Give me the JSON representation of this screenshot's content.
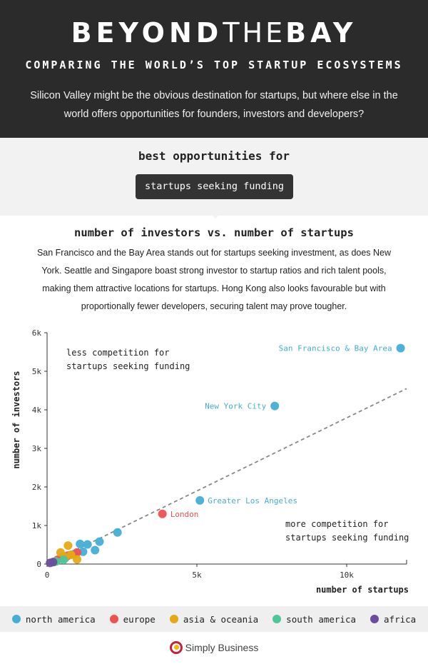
{
  "header": {
    "title_bold_1": "BEYOND",
    "title_thin": "THE",
    "title_bold_2": "BAY",
    "subtitle": "COMPARING THE WORLD’S TOP STARTUP ECOSYSTEMS",
    "intro": "Silicon Valley might be the obvious destination for startups, but where else in the world offers opportunities for founders, investors and developers?"
  },
  "section": {
    "best_label": "best opportunities for",
    "selected_option": "startups seeking funding",
    "chart_heading": "number of investors vs. number of startups",
    "description": "San Francisco and the Bay Area stands out for startups seeking investment, as does New York. Seattle and Singapore boast strong investor to startup ratios and rich talent pools, making them attractive locations for startups. Hong Kong also looks favourable but with proportionally fewer developers, securing talent may prove tougher."
  },
  "colors": {
    "north america": "#45aed6",
    "europe": "#ef5050",
    "asia & oceania": "#e6a914",
    "south america": "#4bc79a",
    "africa": "#6a4e9c"
  },
  "chart_data": {
    "type": "scatter",
    "xlabel": "number of startups",
    "ylabel": "number of investors",
    "xlim": [
      0,
      12000
    ],
    "ylim": [
      0,
      6000
    ],
    "xticks": [
      0,
      5000,
      10000
    ],
    "xtick_labels": [
      "0",
      "5k",
      "10k"
    ],
    "yticks": [
      0,
      1000,
      2000,
      3000,
      4000,
      5000,
      6000
    ],
    "ytick_labels": [
      "0",
      "1k",
      "2k",
      "3k",
      "4k",
      "5k",
      "6k"
    ],
    "reference_line": {
      "style": "dashed",
      "from": [
        0,
        0
      ],
      "to": [
        12000,
        4550
      ]
    },
    "annotations": [
      {
        "text_lines": [
          "less competition for",
          "startups seeking funding"
        ],
        "placement": "top-left"
      },
      {
        "text_lines": [
          "more competition for",
          "startups seeking funding"
        ],
        "placement": "bottom-right"
      }
    ],
    "series": [
      {
        "name": "north america",
        "points": [
          {
            "x": 11800,
            "y": 5600,
            "label": "San Francisco & Bay Area"
          },
          {
            "x": 7600,
            "y": 4100,
            "label": "New York City"
          },
          {
            "x": 5100,
            "y": 1650,
            "label": "Greater Los Angeles"
          },
          {
            "x": 2350,
            "y": 820
          },
          {
            "x": 1750,
            "y": 580
          },
          {
            "x": 1350,
            "y": 510
          },
          {
            "x": 1100,
            "y": 520
          },
          {
            "x": 1600,
            "y": 360
          },
          {
            "x": 1200,
            "y": 320
          },
          {
            "x": 900,
            "y": 260
          },
          {
            "x": 600,
            "y": 150
          }
        ]
      },
      {
        "name": "europe",
        "points": [
          {
            "x": 3850,
            "y": 1300,
            "label": "London"
          },
          {
            "x": 1000,
            "y": 300
          },
          {
            "x": 700,
            "y": 220
          },
          {
            "x": 500,
            "y": 180
          },
          {
            "x": 350,
            "y": 110
          },
          {
            "x": 250,
            "y": 60
          }
        ]
      },
      {
        "name": "asia & oceania",
        "points": [
          {
            "x": 700,
            "y": 480
          },
          {
            "x": 450,
            "y": 300
          },
          {
            "x": 1000,
            "y": 120
          },
          {
            "x": 800,
            "y": 240
          },
          {
            "x": 600,
            "y": 180
          }
        ]
      },
      {
        "name": "south america",
        "points": [
          {
            "x": 550,
            "y": 110
          },
          {
            "x": 300,
            "y": 70
          }
        ]
      },
      {
        "name": "africa",
        "points": [
          {
            "x": 100,
            "y": 30
          },
          {
            "x": 200,
            "y": 50
          }
        ]
      }
    ]
  },
  "legend": [
    {
      "label": "north america",
      "color": "#45aed6"
    },
    {
      "label": "europe",
      "color": "#ef5050"
    },
    {
      "label": "asia & oceania",
      "color": "#e6a914"
    },
    {
      "label": "south america",
      "color": "#4bc79a"
    },
    {
      "label": "africa",
      "color": "#6a4e9c"
    }
  ],
  "footer": {
    "brand": "Simply Business"
  }
}
